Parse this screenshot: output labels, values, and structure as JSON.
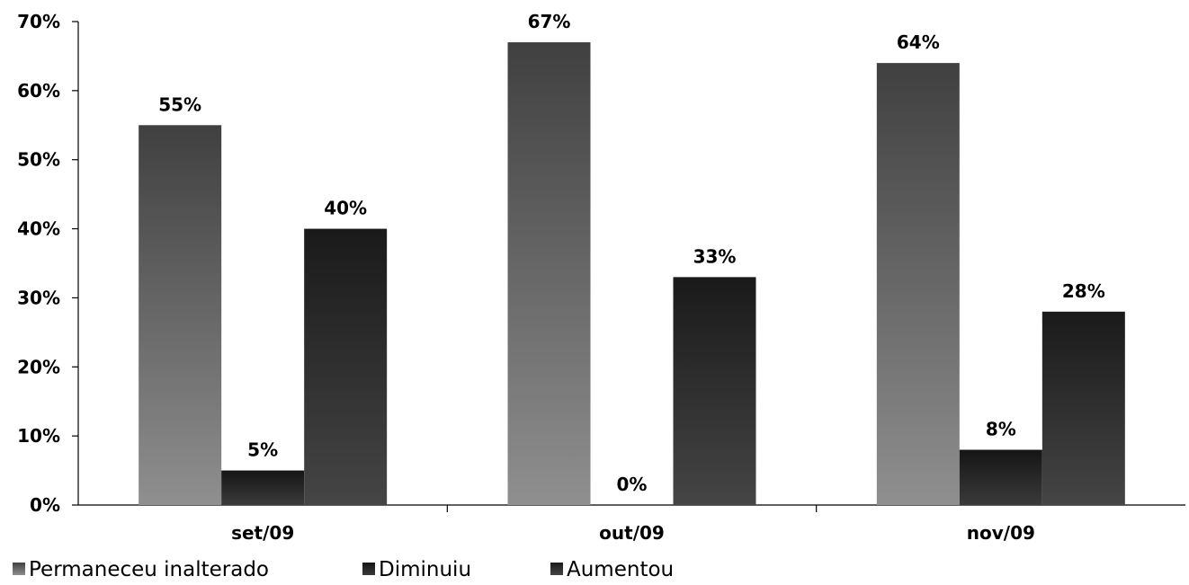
{
  "chart_data": {
    "type": "bar",
    "categories": [
      "set/09",
      "out/09",
      "nov/09"
    ],
    "series": [
      {
        "name": "Permaneceu inalterado",
        "values": [
          55,
          67,
          64
        ],
        "labels": [
          "55%",
          "67%",
          "64%"
        ],
        "gradient": [
          "#404040",
          "#8f8f8f"
        ]
      },
      {
        "name": "Diminuiu",
        "values": [
          5,
          0,
          8
        ],
        "labels": [
          "5%",
          "0%",
          "8%"
        ],
        "gradient": [
          "#151515",
          "#3a3a3a"
        ]
      },
      {
        "name": "Aumentou",
        "values": [
          40,
          33,
          28
        ],
        "labels": [
          "40%",
          "33%",
          "28%"
        ],
        "gradient": [
          "#1a1a1a",
          "#454545"
        ]
      }
    ],
    "y_ticks": [
      "0%",
      "10%",
      "20%",
      "30%",
      "40%",
      "50%",
      "60%",
      "70%"
    ],
    "ylim": [
      0,
      70
    ],
    "grid": false,
    "legend_position": "bottom-left"
  }
}
